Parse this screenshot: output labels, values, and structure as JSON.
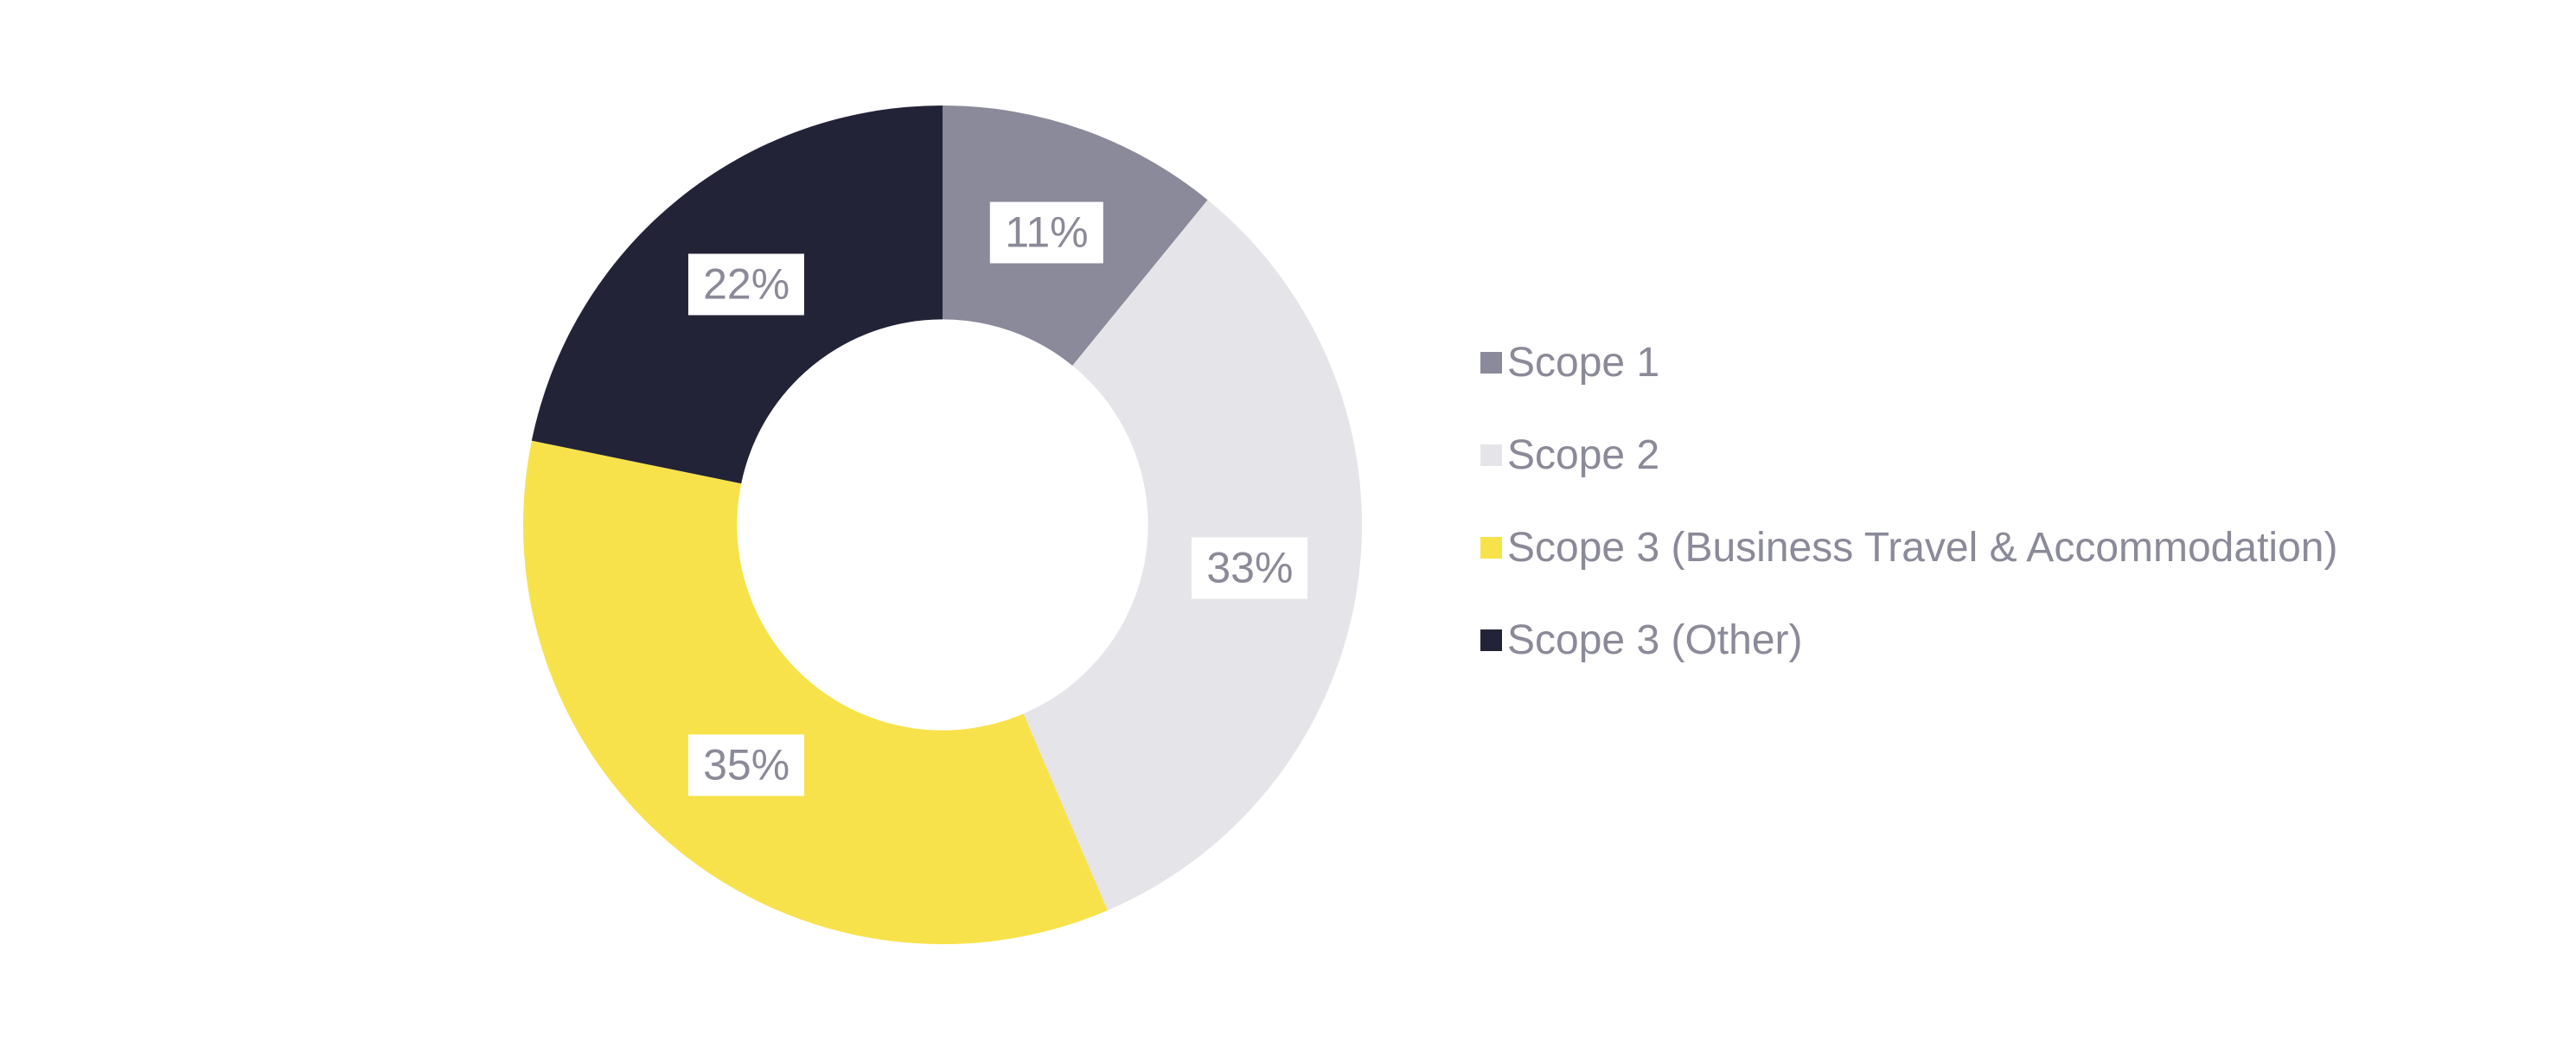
{
  "chart_data": {
    "type": "pie",
    "variant": "donut",
    "title": "",
    "background": "#ffffff",
    "label_text_color": "#8a8a99",
    "label_background": "#ffffff",
    "start_angle_deg": 0,
    "direction": "clockwise",
    "inner_radius_ratio": 0.49,
    "label_radius_ratio": 0.74,
    "legend_position": "right",
    "series": [
      {
        "name": "Scope 1",
        "value": 11,
        "label": "11%",
        "color": "#8a8a9a"
      },
      {
        "name": "Scope 2",
        "value": 33,
        "label": "33%",
        "color": "#e5e4e9"
      },
      {
        "name": "Scope 3 (Business Travel & Accommodation)",
        "value": 35,
        "label": "35%",
        "color": "#f8e24b"
      },
      {
        "name": "Scope 3 (Other)",
        "value": 22,
        "label": "22%",
        "color": "#232338"
      }
    ]
  }
}
